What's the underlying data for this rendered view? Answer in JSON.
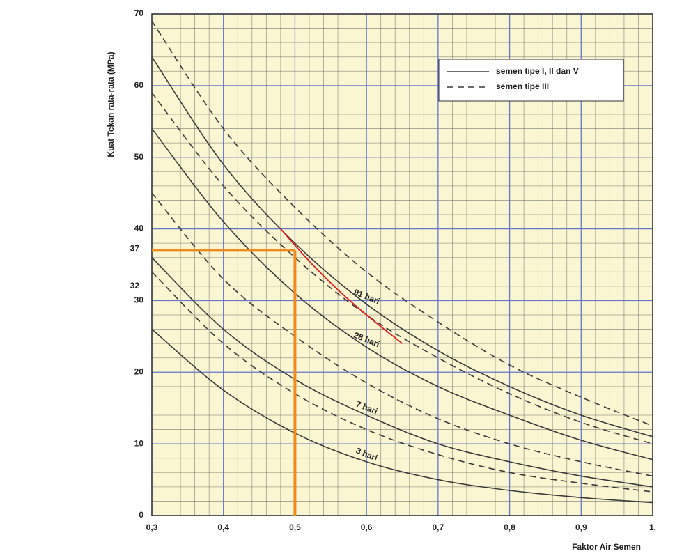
{
  "chart_data": {
    "type": "line",
    "x_label": "Faktor Air Semen",
    "y_label": "Kuat Tekan rata-rata (MPa)",
    "x": [
      0.3,
      0.4,
      0.5,
      0.6,
      0.7,
      0.8,
      0.9,
      1.0
    ],
    "ages": [
      {
        "label": "3 hari",
        "solid": [
          26,
          17.5,
          11.5,
          7.5,
          5,
          3.5,
          2.5,
          1.8
        ],
        "dashed": [
          34,
          24,
          17,
          12,
          8.5,
          6,
          4.5,
          3.3
        ]
      },
      {
        "label": "7 hari",
        "solid": [
          36,
          26,
          19,
          14,
          10,
          7.5,
          5.5,
          4
        ],
        "dashed": [
          45,
          33,
          25,
          18.5,
          13.5,
          10,
          7.5,
          5.5
        ]
      },
      {
        "label": "28 hari",
        "solid": [
          54,
          41,
          31,
          23.5,
          18,
          14,
          10.5,
          7.8
        ],
        "dashed": [
          59,
          46,
          36,
          28,
          22,
          17,
          13,
          10
        ]
      },
      {
        "label": "91 hari",
        "solid": [
          64,
          49,
          38,
          29.5,
          23,
          18,
          14,
          11
        ],
        "dashed": [
          69,
          54,
          43,
          34,
          27,
          21,
          16.5,
          12.5
        ]
      }
    ],
    "curve_color": "#3a3a3a",
    "label_color": "#d42020",
    "legend": [
      {
        "label": "semen tipe I, II dan V",
        "dashed": false
      },
      {
        "label": "semen tipe III",
        "dashed": true
      }
    ],
    "legend_position": "upper right",
    "red_curve": {
      "x": [
        0.48,
        0.52,
        0.56,
        0.6,
        0.65
      ],
      "values": [
        40,
        35.5,
        31.5,
        28,
        24
      ],
      "color": "#e02020"
    },
    "guide_x": 0.5,
    "guide_color": "#ee8a1e",
    "marked_y": [
      {
        "value": 37,
        "label": "37",
        "color": "#2a2a55"
      },
      {
        "value": 32,
        "label": "32",
        "color": "#d42020"
      }
    ],
    "xlim": [
      0.3,
      1.0
    ],
    "ylim": [
      0,
      70
    ],
    "xticks": [
      {
        "value": 0.3,
        "label": "0,3"
      },
      {
        "value": 0.4,
        "label": "0,4"
      },
      {
        "value": 0.5,
        "label": "0,5"
      },
      {
        "value": 0.6,
        "label": "0,6"
      },
      {
        "value": 0.7,
        "label": "0,7"
      },
      {
        "value": 0.8,
        "label": "0,8"
      },
      {
        "value": 0.9,
        "label": "0,9"
      },
      {
        "value": 1.0,
        "label": "1,"
      }
    ],
    "yticks": [
      0,
      10,
      20,
      30,
      40,
      50,
      60,
      70
    ],
    "grid": true,
    "minor_grid": true
  }
}
